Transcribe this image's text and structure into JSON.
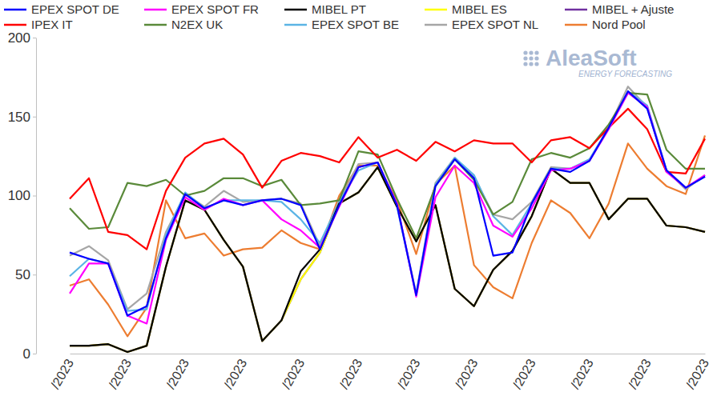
{
  "chart_data": {
    "type": "line",
    "annotations": [
      "AleaSoft",
      "ENERGY FORECASTING"
    ],
    "categories": [
      "/2023",
      null,
      null,
      "/2023",
      null,
      null,
      "/2023",
      null,
      null,
      "/2023",
      null,
      null,
      "/2023",
      null,
      null,
      "/2023",
      null,
      null,
      "/2023",
      null,
      null,
      "/2023",
      null,
      null,
      "/2023",
      null,
      null,
      "/2023",
      null,
      null,
      "/2023",
      null,
      null,
      "/2023"
    ],
    "series": [
      {
        "name": "EPEX SPOT DE",
        "color": "#0000ff",
        "values": [
          64,
          60,
          57,
          24,
          30,
          73,
          101,
          92,
          97,
          94,
          97,
          98,
          94,
          66,
          94,
          118,
          121,
          94,
          37,
          106,
          123,
          111,
          62,
          64,
          95,
          117,
          115,
          122,
          143,
          166,
          155,
          116,
          105,
          112
        ]
      },
      {
        "name": "EPEX SPOT FR",
        "color": "#ff00ff",
        "values": [
          38,
          57,
          57,
          24,
          19,
          72,
          99,
          91,
          98,
          94,
          97,
          85,
          78,
          67,
          93,
          118,
          121,
          95,
          36,
          99,
          119,
          108,
          81,
          74,
          92,
          116,
          117,
          122,
          142,
          165,
          156,
          115,
          105,
          113
        ]
      },
      {
        "name": "MIBEL PT",
        "color": "#000000",
        "values": [
          5,
          5,
          6,
          1,
          5,
          55,
          97,
          91,
          72,
          55,
          8,
          21,
          52,
          66,
          95,
          102,
          118,
          93,
          71,
          94,
          41,
          30,
          53,
          65,
          87,
          117,
          108,
          108,
          85,
          98,
          98,
          81,
          80,
          77
        ]
      },
      {
        "name": "MIBEL ES",
        "color": "#ffff00",
        "values": [
          5,
          5,
          6,
          1,
          5,
          55,
          97,
          91,
          72,
          55,
          8,
          21,
          47,
          64,
          95,
          102,
          118,
          93,
          71,
          94,
          41,
          30,
          53,
          65,
          87,
          117,
          108,
          108,
          85,
          98,
          98,
          81,
          80,
          77
        ]
      },
      {
        "name": "MIBEL + Ajuste",
        "color": "#7030a0",
        "values": [
          5,
          5,
          6,
          1,
          5,
          55,
          97,
          91,
          72,
          55,
          8,
          21,
          47,
          64,
          95,
          102,
          118,
          93,
          71,
          94,
          41,
          30,
          53,
          65,
          87,
          117,
          108,
          108,
          85,
          98,
          98,
          81,
          80,
          77
        ]
      },
      {
        "name": "IPEX IT",
        "color": "#ff0000",
        "values": [
          98,
          111,
          77,
          75,
          66,
          103,
          124,
          133,
          136,
          126,
          105,
          122,
          127,
          125,
          121,
          137,
          124,
          129,
          122,
          134,
          128,
          135,
          133,
          133,
          121,
          135,
          137,
          130,
          143,
          155,
          142,
          115,
          114,
          136
        ]
      },
      {
        "name": "N2EX UK",
        "color": "#5a8a3a",
        "values": [
          92,
          79,
          80,
          108,
          106,
          110,
          100,
          103,
          111,
          111,
          106,
          110,
          94,
          95,
          97,
          128,
          126,
          98,
          73,
          106,
          123,
          110,
          88,
          96,
          123,
          127,
          124,
          130,
          145,
          165,
          164,
          129,
          117,
          117
        ]
      },
      {
        "name": "EPEX SPOT BE",
        "color": "#5bb4e5",
        "values": [
          49,
          60,
          57,
          27,
          28,
          75,
          102,
          92,
          97,
          97,
          97,
          96,
          85,
          70,
          96,
          116,
          121,
          93,
          37,
          107,
          124,
          113,
          87,
          75,
          95,
          117,
          117,
          123,
          143,
          166,
          157,
          116,
          105,
          112
        ]
      },
      {
        "name": "EPEX SPOT NL",
        "color": "#a6a6a6",
        "values": [
          62,
          68,
          59,
          28,
          38,
          77,
          101,
          93,
          103,
          96,
          97,
          98,
          95,
          68,
          97,
          120,
          121,
          94,
          38,
          108,
          124,
          112,
          88,
          85,
          96,
          118,
          117,
          122,
          143,
          169,
          156,
          116,
          104,
          113
        ]
      },
      {
        "name": "Nord Pool",
        "color": "#ed7d31",
        "values": [
          43,
          47,
          31,
          11,
          29,
          97,
          73,
          76,
          62,
          66,
          67,
          78,
          70,
          66,
          100,
          119,
          119,
          97,
          63,
          107,
          119,
          56,
          42,
          35,
          70,
          97,
          89,
          73,
          95,
          133,
          117,
          106,
          101,
          138
        ]
      }
    ],
    "ylim": [
      0,
      200
    ],
    "yticks": [
      0,
      50,
      100,
      150,
      200
    ],
    "grid": false
  }
}
